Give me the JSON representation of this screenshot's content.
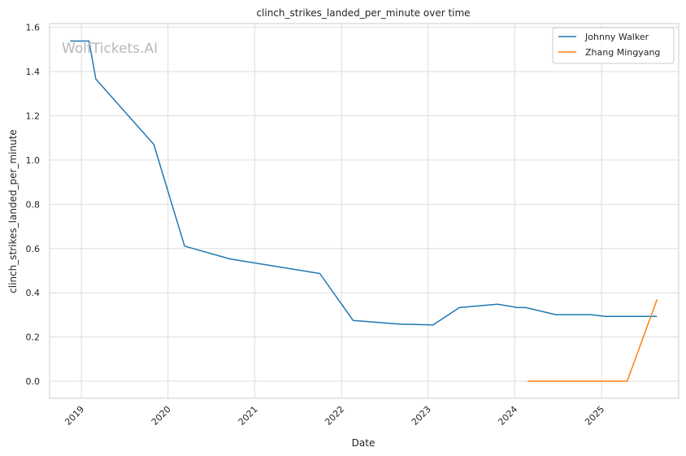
{
  "watermark": "WolfTickets.AI",
  "chart_data": {
    "type": "line",
    "title": "clinch_strikes_landed_per_minute over time",
    "xlabel": "Date",
    "ylabel": "clinch_strikes_landed_per_minute",
    "xlim": [
      "2018-08-20",
      "2025-11-22"
    ],
    "ylim": [
      -0.077,
      1.617
    ],
    "x_ticks": [
      "2019",
      "2020",
      "2021",
      "2022",
      "2023",
      "2024",
      "2025"
    ],
    "y_ticks": [
      "0.0",
      "0.2",
      "0.4",
      "0.6",
      "0.8",
      "1.0",
      "1.2",
      "1.4",
      "1.6"
    ],
    "grid": true,
    "legend_position": "top-right",
    "series": [
      {
        "name": "Johnny Walker",
        "color": "#1f77b4",
        "points": [
          [
            "2018-11-15",
            1.538
          ],
          [
            "2019-02-02",
            1.538
          ],
          [
            "2019-03-03",
            1.366
          ],
          [
            "2019-11-02",
            1.071
          ],
          [
            "2020-03-11",
            0.611
          ],
          [
            "2020-09-19",
            0.553
          ],
          [
            "2021-10-02",
            0.487
          ],
          [
            "2022-02-19",
            0.275
          ],
          [
            "2022-09-03",
            0.258
          ],
          [
            "2023-01-22",
            0.255
          ],
          [
            "2023-05-13",
            0.333
          ],
          [
            "2023-10-21",
            0.348
          ],
          [
            "2024-01-13",
            0.333
          ],
          [
            "2024-02-17",
            0.333
          ],
          [
            "2024-06-22",
            0.301
          ],
          [
            "2024-11-16",
            0.301
          ],
          [
            "2025-01-18",
            0.293
          ],
          [
            "2025-08-23",
            0.293
          ]
        ]
      },
      {
        "name": "Zhang Mingyang",
        "color": "#ff7f0e",
        "points": [
          [
            "2024-02-24",
            0.0
          ],
          [
            "2025-04-19",
            0.0
          ],
          [
            "2025-08-23",
            0.37
          ]
        ]
      }
    ]
  }
}
